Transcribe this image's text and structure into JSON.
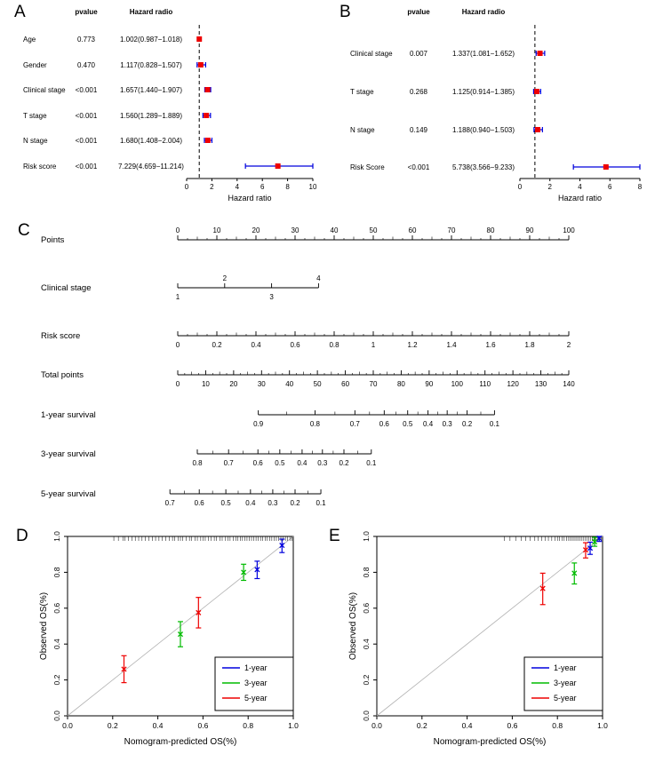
{
  "chart_data": [
    {
      "id": "a",
      "letter": "A",
      "type": "scatter",
      "variant": "forest-plot",
      "header": {
        "pvalue": "pvalue",
        "hazard": "Hazard radio"
      },
      "xlabel": "Hazard ratio",
      "axis": {
        "min": 0,
        "max": 10,
        "ticks": [
          "0",
          "2",
          "4",
          "6",
          "8",
          "10"
        ],
        "ref_line": 1
      },
      "colors": {
        "point": "#ee0000",
        "ci": "#0000dd"
      },
      "rows": [
        {
          "label": "Age",
          "pvalue": "0.773",
          "hr_text": "1.002(0.987−1.018)",
          "hr": 1.002,
          "lo": 0.987,
          "hi": 1.018
        },
        {
          "label": "Gender",
          "pvalue": "0.470",
          "hr_text": "1.117(0.828−1.507)",
          "hr": 1.117,
          "lo": 0.828,
          "hi": 1.507
        },
        {
          "label": "Clinical stage",
          "pvalue": "<0.001",
          "hr_text": "1.657(1.440−1.907)",
          "hr": 1.657,
          "lo": 1.44,
          "hi": 1.907
        },
        {
          "label": "T stage",
          "pvalue": "<0.001",
          "hr_text": "1.560(1.289−1.889)",
          "hr": 1.56,
          "lo": 1.289,
          "hi": 1.889
        },
        {
          "label": "N stage",
          "pvalue": "<0.001",
          "hr_text": "1.680(1.408−2.004)",
          "hr": 1.68,
          "lo": 1.408,
          "hi": 2.004
        },
        {
          "label": "Risk score",
          "pvalue": "<0.001",
          "hr_text": "7.229(4.659−11.214)",
          "hr": 7.229,
          "lo": 4.659,
          "hi": 11.214
        }
      ]
    },
    {
      "id": "b",
      "letter": "B",
      "type": "scatter",
      "variant": "forest-plot",
      "header": {
        "pvalue": "pvalue",
        "hazard": "Hazard radio"
      },
      "xlabel": "Hazard ratio",
      "axis": {
        "min": 0,
        "max": 8,
        "ticks": [
          "0",
          "2",
          "4",
          "6",
          "8"
        ],
        "ref_line": 1
      },
      "colors": {
        "point": "#ee0000",
        "ci": "#0000dd"
      },
      "rows": [
        {
          "label": "Clinical stage",
          "pvalue": "0.007",
          "hr_text": "1.337(1.081−1.652)",
          "hr": 1.337,
          "lo": 1.081,
          "hi": 1.652
        },
        {
          "label": "T stage",
          "pvalue": "0.268",
          "hr_text": "1.125(0.914−1.385)",
          "hr": 1.125,
          "lo": 0.914,
          "hi": 1.385
        },
        {
          "label": "N stage",
          "pvalue": "0.149",
          "hr_text": "1.188(0.940−1.503)",
          "hr": 1.188,
          "lo": 0.94,
          "hi": 1.503
        },
        {
          "label": "Risk Score",
          "pvalue": "<0.001",
          "hr_text": "5.738(3.566−9.233)",
          "hr": 5.738,
          "lo": 3.566,
          "hi": 9.233
        }
      ]
    },
    {
      "id": "c",
      "letter": "C",
      "type": "line",
      "variant": "nomogram",
      "rows": [
        {
          "label": "Points",
          "side": "above",
          "minor_div": 4,
          "ticks": [
            {
              "v": "0",
              "f": 0
            },
            {
              "v": "10",
              "f": 0.1
            },
            {
              "v": "20",
              "f": 0.2
            },
            {
              "v": "30",
              "f": 0.3
            },
            {
              "v": "40",
              "f": 0.4
            },
            {
              "v": "50",
              "f": 0.5
            },
            {
              "v": "60",
              "f": 0.6
            },
            {
              "v": "70",
              "f": 0.7
            },
            {
              "v": "80",
              "f": 0.8
            },
            {
              "v": "90",
              "f": 0.9
            },
            {
              "v": "100",
              "f": 1
            }
          ]
        },
        {
          "label": "Clinical stage",
          "side": "below",
          "minor_div": 0,
          "ticks": [
            {
              "v": "1",
              "f": 0
            },
            {
              "v": "2",
              "f": 0.12,
              "side": "above"
            },
            {
              "v": "3",
              "f": 0.24
            },
            {
              "v": "4",
              "f": 0.36,
              "side": "above"
            }
          ]
        },
        {
          "label": "Risk score",
          "side": "below",
          "minor_div": 4,
          "ticks": [
            {
              "v": "0",
              "f": 0
            },
            {
              "v": "0.2",
              "f": 0.1
            },
            {
              "v": "0.4",
              "f": 0.2
            },
            {
              "v": "0.6",
              "f": 0.3
            },
            {
              "v": "0.8",
              "f": 0.4
            },
            {
              "v": "1",
              "f": 0.5
            },
            {
              "v": "1.2",
              "f": 0.6
            },
            {
              "v": "1.4",
              "f": 0.7
            },
            {
              "v": "1.6",
              "f": 0.8
            },
            {
              "v": "1.8",
              "f": 0.9
            },
            {
              "v": "2",
              "f": 1
            }
          ]
        },
        {
          "label": "Total points",
          "side": "below",
          "minor_div": 4,
          "ticks": [
            {
              "v": "0",
              "f": 0
            },
            {
              "v": "10",
              "f": 0.0714
            },
            {
              "v": "20",
              "f": 0.1429
            },
            {
              "v": "30",
              "f": 0.2143
            },
            {
              "v": "40",
              "f": 0.2857
            },
            {
              "v": "50",
              "f": 0.3571
            },
            {
              "v": "60",
              "f": 0.4286
            },
            {
              "v": "70",
              "f": 0.5
            },
            {
              "v": "80",
              "f": 0.5714
            },
            {
              "v": "90",
              "f": 0.6429
            },
            {
              "v": "100",
              "f": 0.7143
            },
            {
              "v": "110",
              "f": 0.7857
            },
            {
              "v": "120",
              "f": 0.8571
            },
            {
              "v": "130",
              "f": 0.9286
            },
            {
              "v": "140",
              "f": 1
            }
          ]
        },
        {
          "label": "1-year survival",
          "side": "below",
          "minor_div": 2,
          "ticks": [
            {
              "v": "0.9",
              "f": 0.206
            },
            {
              "v": "0.8",
              "f": 0.351
            },
            {
              "v": "0.7",
              "f": 0.453
            },
            {
              "v": "0.6",
              "f": 0.528
            },
            {
              "v": "0.5",
              "f": 0.588
            },
            {
              "v": "0.4",
              "f": 0.64
            },
            {
              "v": "0.3",
              "f": 0.689
            },
            {
              "v": "0.2",
              "f": 0.74
            },
            {
              "v": "0.1",
              "f": 0.81
            }
          ]
        },
        {
          "label": "3-year survival",
          "side": "below",
          "minor_div": 2,
          "ticks": [
            {
              "v": "0.8",
              "f": 0.05
            },
            {
              "v": "0.7",
              "f": 0.13
            },
            {
              "v": "0.6",
              "f": 0.205
            },
            {
              "v": "0.5",
              "f": 0.261
            },
            {
              "v": "0.4",
              "f": 0.318
            },
            {
              "v": "0.3",
              "f": 0.37
            },
            {
              "v": "0.2",
              "f": 0.425
            },
            {
              "v": "0.1",
              "f": 0.495
            }
          ]
        },
        {
          "label": "5-year survival",
          "side": "below",
          "minor_div": 2,
          "ticks": [
            {
              "v": "0.7",
              "f": -0.02
            },
            {
              "v": "0.6",
              "f": 0.055
            },
            {
              "v": "0.5",
              "f": 0.123
            },
            {
              "v": "0.4",
              "f": 0.186
            },
            {
              "v": "0.3",
              "f": 0.243
            },
            {
              "v": "0.2",
              "f": 0.3
            },
            {
              "v": "0.1",
              "f": 0.366
            }
          ]
        }
      ]
    },
    {
      "id": "d",
      "letter": "D",
      "type": "scatter",
      "variant": "calibration",
      "xlabel": "Nomogram-predicted OS(%)",
      "ylabel": "Observed OS(%)",
      "axis": {
        "xlim": [
          0,
          1
        ],
        "ylim": [
          0,
          1
        ],
        "ticks": [
          "0.0",
          "0.2",
          "0.4",
          "0.6",
          "0.8",
          "1.0"
        ]
      },
      "diagonal_color": "#b3b3b3",
      "series": [
        {
          "name": "1-year",
          "color": "#0000dd",
          "points": [
            {
              "x": 0.84,
              "y": 0.815,
              "lo": 0.765,
              "hi": 0.862
            },
            {
              "x": 0.95,
              "y": 0.95,
              "lo": 0.91,
              "hi": 0.985
            }
          ]
        },
        {
          "name": "3-year",
          "color": "#00bb00",
          "points": [
            {
              "x": 0.5,
              "y": 0.455,
              "lo": 0.385,
              "hi": 0.525
            },
            {
              "x": 0.78,
              "y": 0.8,
              "lo": 0.755,
              "hi": 0.845
            }
          ]
        },
        {
          "name": "5-year",
          "color": "#ee0000",
          "points": [
            {
              "x": 0.25,
              "y": 0.26,
              "lo": 0.185,
              "hi": 0.335
            },
            {
              "x": 0.58,
              "y": 0.575,
              "lo": 0.49,
              "hi": 0.66
            }
          ]
        }
      ],
      "rug": [
        0.205,
        0.225,
        0.245,
        0.255,
        0.27,
        0.285,
        0.3,
        0.315,
        0.33,
        0.345,
        0.36,
        0.375,
        0.39,
        0.405,
        0.42,
        0.435,
        0.45,
        0.465,
        0.475,
        0.49,
        0.5,
        0.51,
        0.525,
        0.54,
        0.55,
        0.565,
        0.575,
        0.59,
        0.6,
        0.61,
        0.625,
        0.635,
        0.65,
        0.66,
        0.675,
        0.685,
        0.7,
        0.71,
        0.72,
        0.735,
        0.745,
        0.755,
        0.765,
        0.775,
        0.785,
        0.795,
        0.805,
        0.815,
        0.825,
        0.835,
        0.845,
        0.855,
        0.865,
        0.875,
        0.885,
        0.895,
        0.905,
        0.915,
        0.925,
        0.935,
        0.945,
        0.955,
        0.965,
        0.975,
        0.985,
        0.995
      ]
    },
    {
      "id": "e",
      "letter": "E",
      "type": "scatter",
      "variant": "calibration",
      "xlabel": "Nomogram-predicted OS(%)",
      "ylabel": "Observed OS(%)",
      "axis": {
        "xlim": [
          0,
          1
        ],
        "ylim": [
          0,
          1
        ],
        "ticks": [
          "0.0",
          "0.2",
          "0.4",
          "0.6",
          "0.8",
          "1.0"
        ]
      },
      "diagonal_color": "#b3b3b3",
      "series": [
        {
          "name": "1-year",
          "color": "#0000dd",
          "points": [
            {
              "x": 0.945,
              "y": 0.935,
              "lo": 0.9,
              "hi": 0.968
            },
            {
              "x": 0.985,
              "y": 0.99,
              "lo": 0.972,
              "hi": 1.0
            }
          ]
        },
        {
          "name": "3-year",
          "color": "#00bb00",
          "points": [
            {
              "x": 0.875,
              "y": 0.795,
              "lo": 0.735,
              "hi": 0.852
            },
            {
              "x": 0.965,
              "y": 0.97,
              "lo": 0.945,
              "hi": 0.995
            }
          ]
        },
        {
          "name": "5-year",
          "color": "#ee0000",
          "points": [
            {
              "x": 0.735,
              "y": 0.71,
              "lo": 0.62,
              "hi": 0.795
            },
            {
              "x": 0.925,
              "y": 0.925,
              "lo": 0.88,
              "hi": 0.965
            }
          ]
        }
      ],
      "rug": [
        0.565,
        0.59,
        0.615,
        0.64,
        0.66,
        0.68,
        0.7,
        0.715,
        0.73,
        0.745,
        0.76,
        0.775,
        0.79,
        0.8,
        0.81,
        0.82,
        0.83,
        0.84,
        0.85,
        0.858,
        0.866,
        0.874,
        0.882,
        0.89,
        0.898,
        0.906,
        0.914,
        0.922,
        0.93,
        0.938,
        0.946,
        0.954,
        0.962,
        0.97,
        0.978,
        0.986,
        0.994
      ]
    }
  ]
}
